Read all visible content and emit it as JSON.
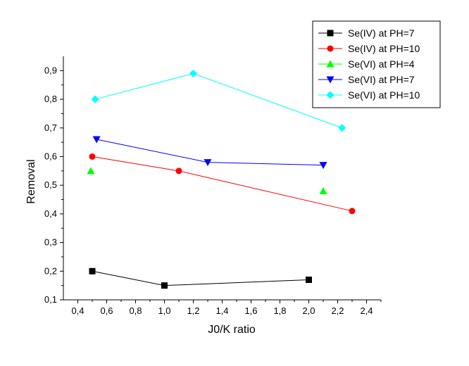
{
  "chart_data": {
    "type": "line",
    "title": "",
    "xlabel": "J0/K ratio",
    "ylabel": "Removal",
    "xlim": [
      0.3,
      2.5
    ],
    "ylim": [
      0.1,
      0.95
    ],
    "xticks": [
      0.4,
      0.6,
      0.8,
      1.0,
      1.2,
      1.4,
      1.6,
      1.8,
      2.0,
      2.2,
      2.4
    ],
    "xtick_labels": [
      "0,4",
      "0,6",
      "0,8",
      "1,0",
      "1,2",
      "1,4",
      "1,6",
      "1,8",
      "2,0",
      "2,2",
      "2,4"
    ],
    "yticks": [
      0.1,
      0.2,
      0.3,
      0.4,
      0.5,
      0.6,
      0.7,
      0.8,
      0.9
    ],
    "ytick_labels": [
      "0,1",
      "0,2",
      "0,3",
      "0,4",
      "0,5",
      "0,6",
      "0,7",
      "0,8",
      "0,9"
    ],
    "grid": false,
    "legend_position": "top-right",
    "series": [
      {
        "name": "Se(IV) at PH=7",
        "color": "#000000",
        "marker": "square",
        "connected": true,
        "x": [
          0.5,
          1.0,
          2.0
        ],
        "y": [
          0.2,
          0.15,
          0.17
        ]
      },
      {
        "name": "Se(IV) at PH=10",
        "color": "#ff0000",
        "marker": "circle",
        "connected": true,
        "x": [
          0.5,
          1.1,
          2.3
        ],
        "y": [
          0.6,
          0.55,
          0.41
        ]
      },
      {
        "name": "Se(VI) at PH=4",
        "color": "#00ff00",
        "marker": "triangle-up",
        "connected": false,
        "x": [
          0.49,
          2.1
        ],
        "y": [
          0.55,
          0.48
        ]
      },
      {
        "name": "Se(VI) at PH=7",
        "color": "#0000ff",
        "marker": "triangle-down",
        "connected": true,
        "x": [
          0.53,
          1.3,
          2.1
        ],
        "y": [
          0.66,
          0.58,
          0.57
        ]
      },
      {
        "name": "Se(VI) at PH=10",
        "color": "#00ffff",
        "marker": "diamond",
        "connected": true,
        "x": [
          0.52,
          1.2,
          2.23
        ],
        "y": [
          0.8,
          0.89,
          0.7
        ]
      }
    ]
  }
}
